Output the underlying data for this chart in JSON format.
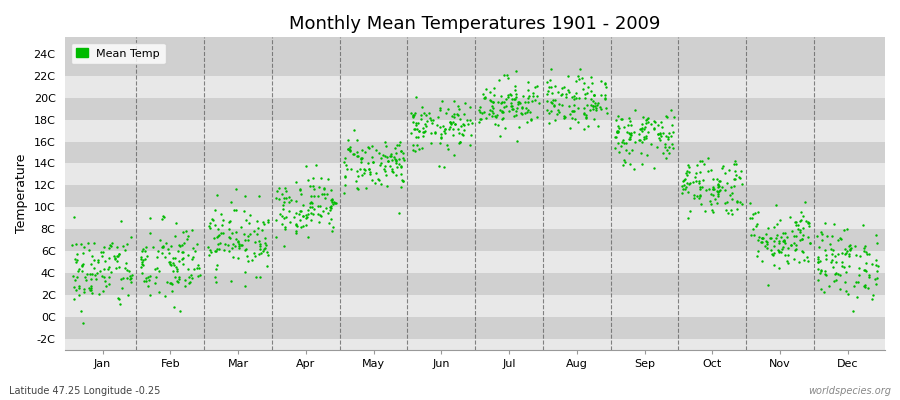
{
  "title": "Monthly Mean Temperatures 1901 - 2009",
  "ylabel": "Temperature",
  "subtitle": "Latitude 47.25 Longitude -0.25",
  "watermark": "worldspecies.org",
  "dot_color": "#00BB00",
  "dot_size": 3,
  "months": [
    "Jan",
    "Feb",
    "Mar",
    "Apr",
    "May",
    "Jun",
    "Jul",
    "Aug",
    "Sep",
    "Oct",
    "Nov",
    "Dec"
  ],
  "month_centers": [
    0.5,
    1.5,
    2.5,
    3.5,
    4.5,
    5.5,
    6.5,
    7.5,
    8.5,
    9.5,
    10.5,
    11.5
  ],
  "month_dividers": [
    1.0,
    2.0,
    3.0,
    4.0,
    5.0,
    6.0,
    7.0,
    8.0,
    9.0,
    10.0,
    11.0
  ],
  "ylim": [
    -3.0,
    25.5
  ],
  "yticks": [
    -2,
    0,
    2,
    4,
    6,
    8,
    10,
    12,
    14,
    16,
    18,
    20,
    22,
    24
  ],
  "ytick_labels": [
    "-2C",
    "0C",
    "2C",
    "4C",
    "6C",
    "8C",
    "10C",
    "12C",
    "14C",
    "16C",
    "18C",
    "20C",
    "22C",
    "24C"
  ],
  "mean_temps": [
    4.2,
    4.8,
    7.2,
    10.2,
    14.0,
    17.2,
    19.5,
    19.5,
    16.5,
    12.0,
    7.2,
    5.0
  ],
  "temp_std": [
    1.8,
    2.0,
    1.6,
    1.4,
    1.3,
    1.2,
    1.2,
    1.2,
    1.3,
    1.4,
    1.5,
    1.7
  ],
  "n_years": 109,
  "figure_bg_color": "#ffffff",
  "plot_bg_color": "#e8e8e8",
  "stripe_color_dark": "#d0d0d0",
  "stripe_color_light": "#e8e8e8",
  "grid_line_color": "#666666",
  "legend_label": "Mean Temp",
  "title_fontsize": 13,
  "label_fontsize": 9,
  "tick_fontsize": 8
}
